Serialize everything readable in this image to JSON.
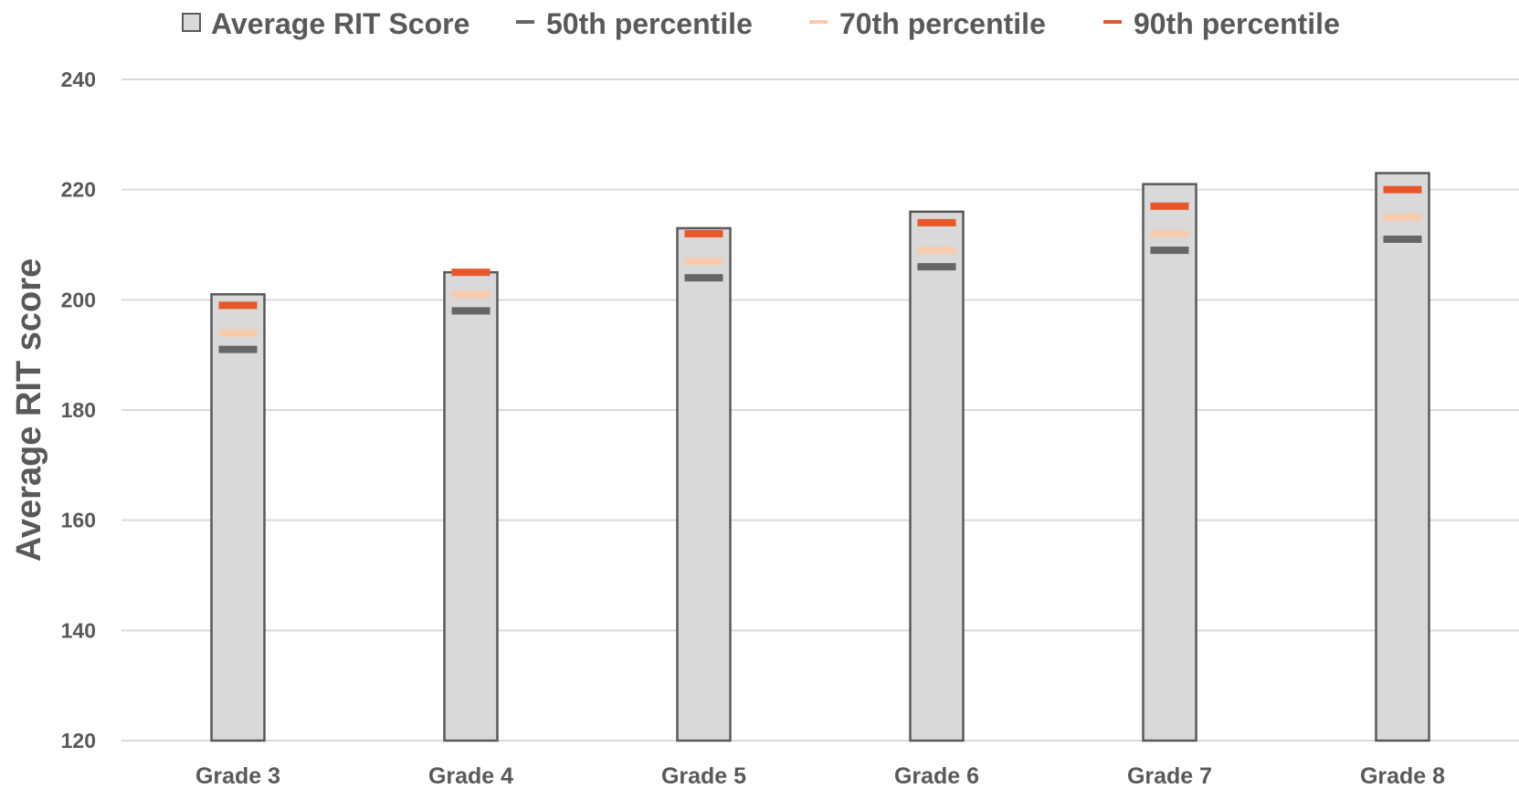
{
  "chart_data": {
    "type": "bar",
    "categories": [
      "Grade 3",
      "Grade 4",
      "Grade 5",
      "Grade 6",
      "Grade 7",
      "Grade 8"
    ],
    "series": [
      {
        "name": "Average RIT Score",
        "kind": "bar",
        "color": "#d9d9d9",
        "stroke": "#595959",
        "values": [
          201,
          205,
          213,
          216,
          221,
          223
        ]
      },
      {
        "name": "50th percentile",
        "kind": "marker",
        "color": "#666666",
        "values": [
          191,
          198,
          204,
          206,
          209,
          211
        ]
      },
      {
        "name": "70th percentile",
        "kind": "marker",
        "color": "#f8cbad",
        "values": [
          194,
          201,
          207,
          209,
          212,
          215
        ]
      },
      {
        "name": "90th percentile",
        "kind": "marker",
        "color": "#e8572a",
        "values": [
          199,
          205,
          212,
          214,
          217,
          220
        ]
      }
    ],
    "title": "",
    "xlabel": "",
    "ylabel": "Average RIT score",
    "ylim": [
      120,
      240
    ],
    "yticks": [
      "120",
      "140",
      "160",
      "180",
      "200",
      "220",
      "240"
    ],
    "grid": true,
    "legend_position": "top"
  }
}
